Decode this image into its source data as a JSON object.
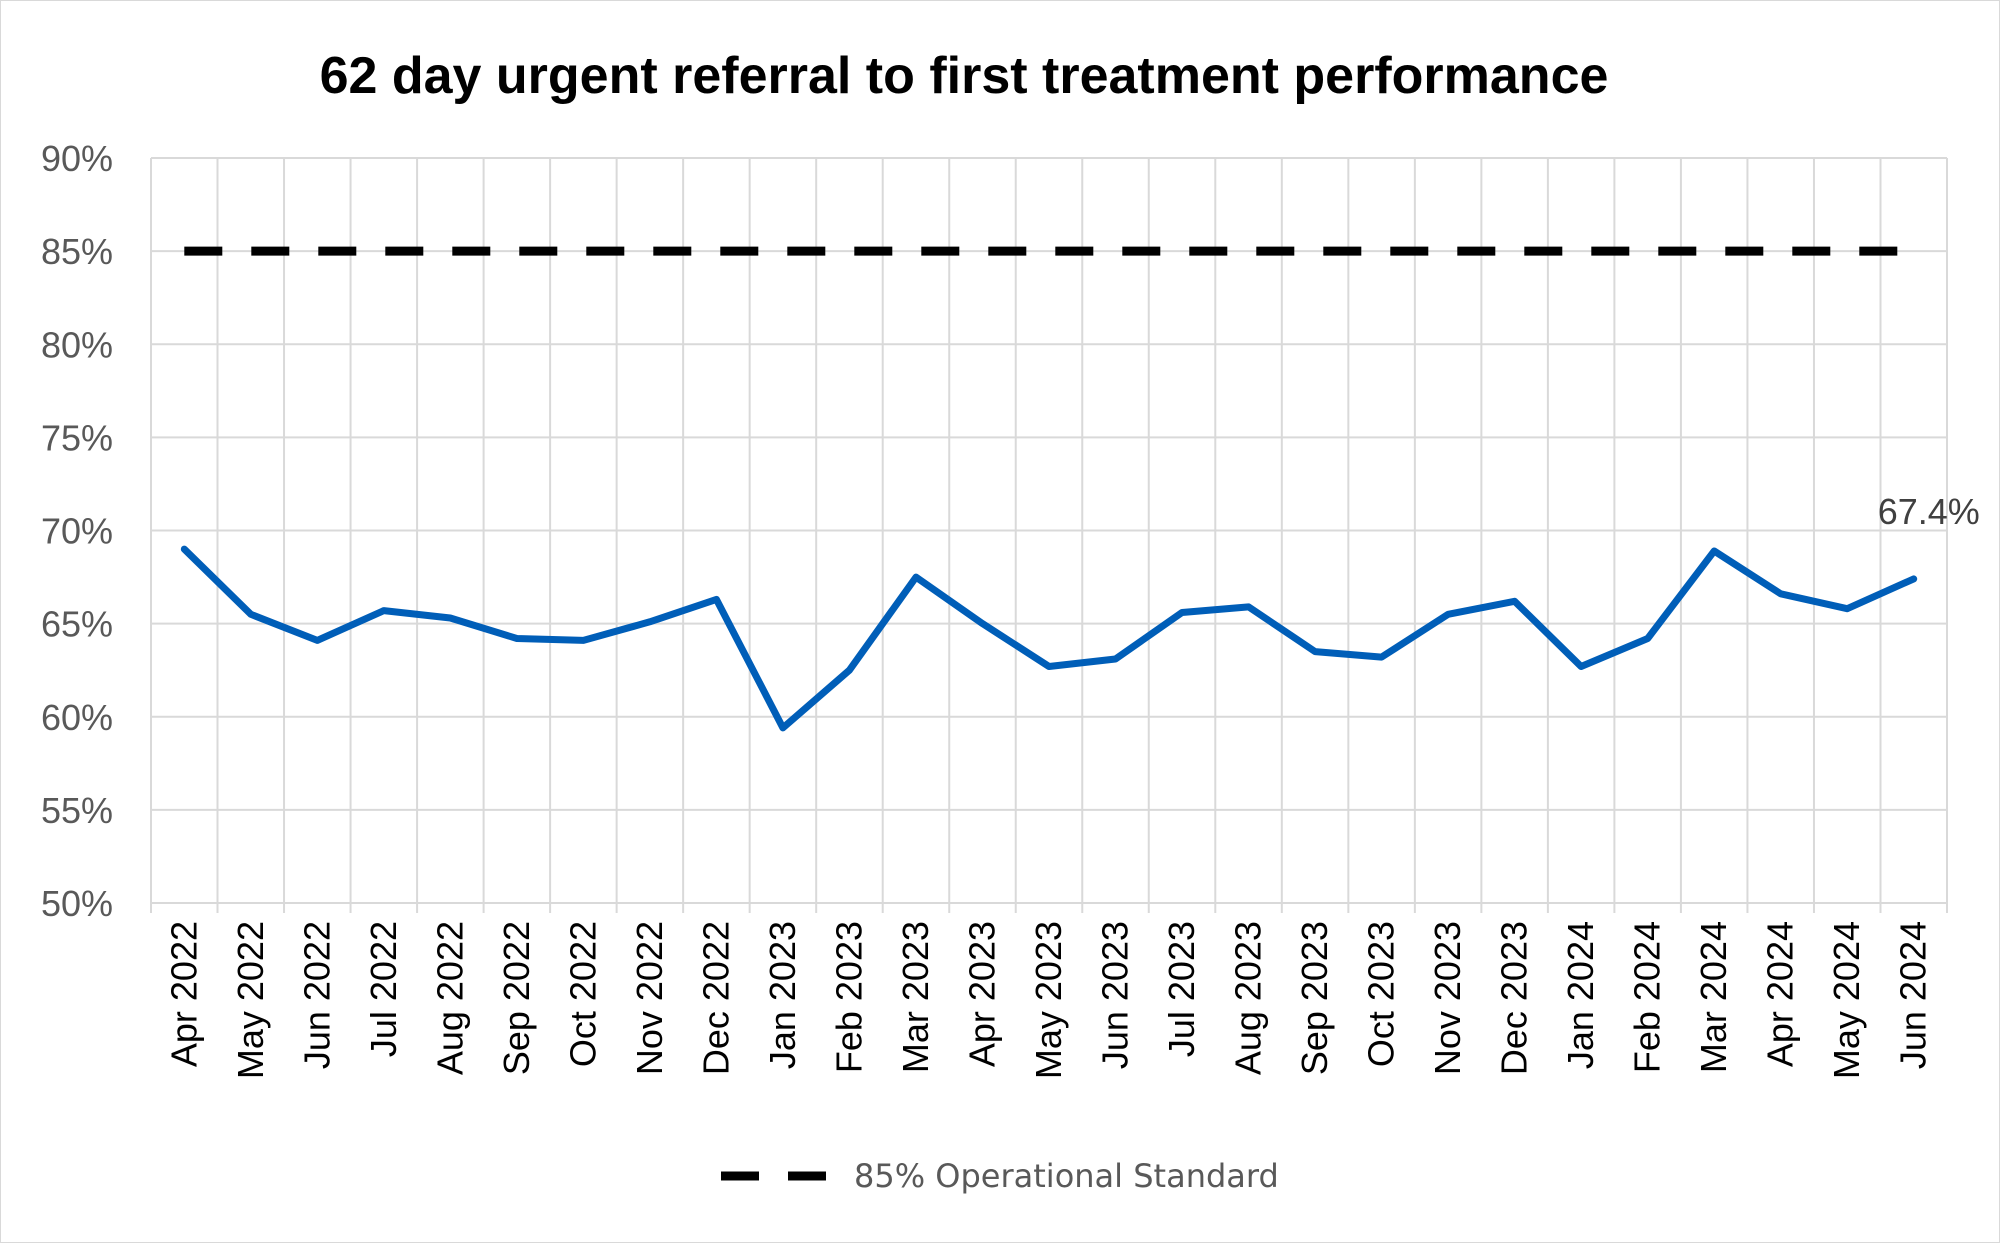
{
  "chart_data": {
    "type": "line",
    "title": "62 day urgent referral to first treatment performance",
    "xlabel": "",
    "ylabel": "",
    "categories": [
      "Apr 2022",
      "May 2022",
      "Jun 2022",
      "Jul 2022",
      "Aug 2022",
      "Sep 2022",
      "Oct 2022",
      "Nov 2022",
      "Dec 2022",
      "Jan 2023",
      "Feb 2023",
      "Mar 2023",
      "Apr 2023",
      "May 2023",
      "Jun 2023",
      "Jul 2023",
      "Aug 2023",
      "Sep 2023",
      "Oct 2023",
      "Nov 2023",
      "Dec 2023",
      "Jan 2024",
      "Feb 2024",
      "Mar 2024",
      "Apr 2024",
      "May 2024",
      "Jun 2024"
    ],
    "ylim": [
      50,
      90
    ],
    "ytick_step": 5,
    "yticks": [
      "50%",
      "55%",
      "60%",
      "65%",
      "70%",
      "75%",
      "80%",
      "85%",
      "90%"
    ],
    "grid": true,
    "legend_position": "bottom",
    "series": [
      {
        "name": "",
        "style": "solid",
        "color": "#005eb8",
        "values": [
          69.0,
          65.5,
          64.1,
          65.7,
          65.3,
          64.2,
          64.1,
          65.1,
          66.3,
          59.4,
          62.5,
          67.5,
          65.0,
          62.7,
          63.1,
          65.6,
          65.9,
          63.5,
          63.2,
          65.5,
          66.2,
          62.7,
          64.2,
          68.9,
          66.6,
          65.8,
          67.4
        ]
      },
      {
        "name": "85% Operational Standard",
        "style": "dashed",
        "color": "#000000",
        "values": [
          85,
          85,
          85,
          85,
          85,
          85,
          85,
          85,
          85,
          85,
          85,
          85,
          85,
          85,
          85,
          85,
          85,
          85,
          85,
          85,
          85,
          85,
          85,
          85,
          85,
          85,
          85
        ]
      }
    ],
    "annotations": [
      {
        "category": "Jun 2024",
        "value": 67.4,
        "text": "67.4%"
      }
    ]
  }
}
